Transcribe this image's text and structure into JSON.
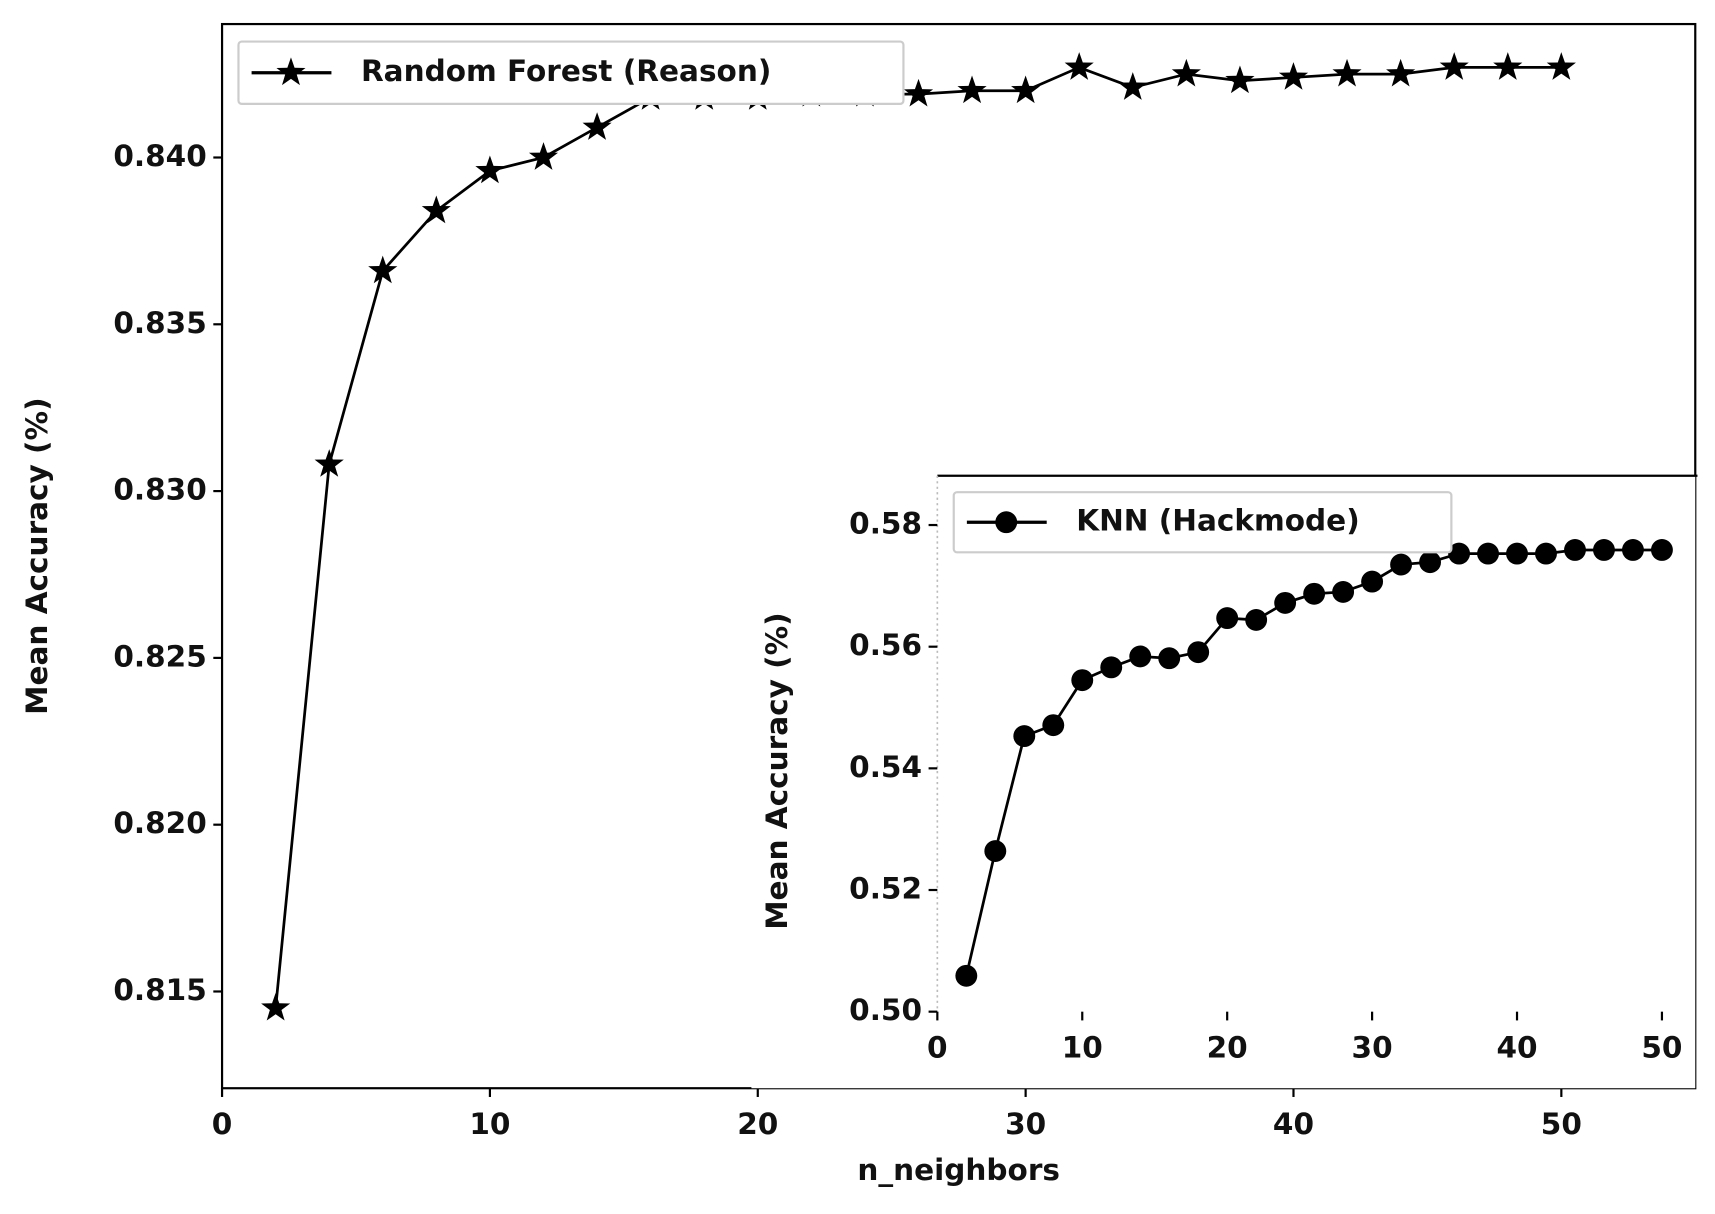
{
  "chart_data": [
    {
      "type": "line",
      "xlabel": "n_neighbors",
      "ylabel": "Mean Accuracy (%)",
      "x": [
        2,
        4,
        6,
        8,
        10,
        12,
        14,
        16,
        18,
        20,
        22,
        24,
        26,
        28,
        30,
        32,
        34,
        36,
        38,
        40,
        42,
        44,
        46,
        48,
        50
      ],
      "series": [
        {
          "name": "Random Forest (Reason)",
          "color": "#000000",
          "marker": "star",
          "values": [
            0.8145,
            0.8308,
            0.8366,
            0.8384,
            0.8396,
            0.84,
            0.8409,
            0.8418,
            0.8418,
            0.8418,
            0.8419,
            0.8419,
            0.8419,
            0.842,
            0.842,
            0.8427,
            0.8421,
            0.8425,
            0.8423,
            0.8424,
            0.8425,
            0.8425,
            0.8427,
            0.8427,
            0.8427
          ]
        }
      ],
      "xlim": [
        0,
        55
      ],
      "xticks": [
        0,
        10,
        20,
        30,
        40,
        50
      ],
      "ylim": [
        0.8121,
        0.844
      ],
      "yticks": [
        0.815,
        {
          "value": 0.82,
          "label": "0.820"
        },
        0.825,
        {
          "value": 0.83,
          "label": "0.830"
        },
        0.835,
        {
          "value": 0.84,
          "label": "0.840"
        }
      ],
      "legend": "upper left"
    },
    {
      "type": "line",
      "ylabel": "Mean Accuracy (%)",
      "x": [
        2,
        4,
        6,
        8,
        10,
        12,
        14,
        16,
        18,
        20,
        22,
        24,
        26,
        28,
        30,
        32,
        34,
        36,
        38,
        40,
        42,
        44,
        46,
        48,
        50
      ],
      "series": [
        {
          "name": "KNN (Hackmode)",
          "color": "#000000",
          "marker": "circle",
          "values": [
            0.5059,
            0.5264,
            0.5453,
            0.5471,
            0.5545,
            0.5566,
            0.5584,
            0.5581,
            0.5591,
            0.5647,
            0.5644,
            0.5672,
            0.5687,
            0.569,
            0.5707,
            0.5735,
            0.5739,
            0.5753,
            0.5753,
            0.5753,
            0.5753,
            0.5759,
            0.5759,
            0.5759,
            0.5759
          ]
        }
      ],
      "xlim": [
        0,
        52.3
      ],
      "xticks": [
        0,
        10,
        20,
        30,
        40,
        50
      ],
      "ylim": [
        0.5,
        0.5881
      ],
      "yticks": [
        {
          "value": 0.5,
          "label": "0.50"
        },
        0.52,
        0.54,
        0.56,
        {
          "value": 0.58,
          "label": "0.58"
        }
      ],
      "legend": "upper left"
    }
  ]
}
